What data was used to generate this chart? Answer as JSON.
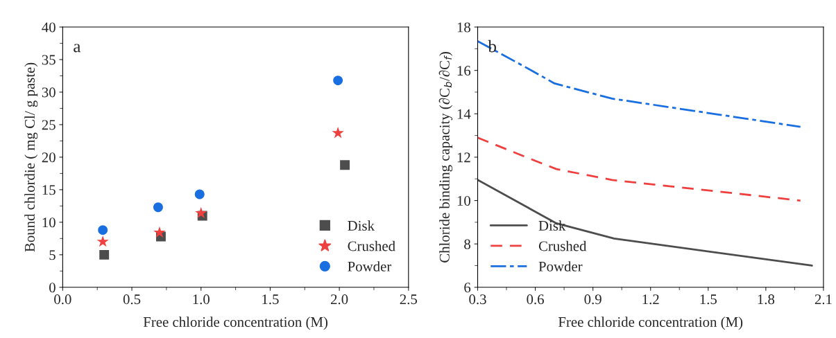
{
  "chart_data": [
    {
      "type": "scatter",
      "xlabel": "Free chloride concentration (M)",
      "ylabel": "Bound chlordie ( mg Cl/ g paste)",
      "annotations": [
        "a"
      ],
      "xlim": [
        0.0,
        2.5
      ],
      "xticks": [
        {
          "value": 0.0,
          "label": "0.0"
        },
        0.5,
        {
          "value": 1.0,
          "label": "1.0"
        },
        1.5,
        {
          "value": 2.0,
          "label": "2.0"
        },
        2.5
      ],
      "ylim": [
        0,
        40
      ],
      "yticks": [
        0,
        5,
        10,
        15,
        20,
        25,
        30,
        35,
        40
      ],
      "grid": false,
      "legend": "bottom right",
      "series": [
        {
          "name": "Disk",
          "color": "#4d4d4d",
          "marker": "square",
          "x": [
            0.3,
            0.71,
            1.01,
            2.04
          ],
          "values": [
            5.0,
            7.8,
            11.0,
            18.8
          ]
        },
        {
          "name": "Crushed",
          "color": "#ef4040",
          "marker": "star",
          "x": [
            0.29,
            0.7,
            1.0,
            1.99
          ],
          "values": [
            7.0,
            8.4,
            11.4,
            23.7
          ]
        },
        {
          "name": "Powder",
          "color": "#1a6fe0",
          "marker": "circle",
          "x": [
            0.29,
            0.69,
            0.99,
            1.99
          ],
          "values": [
            8.8,
            12.3,
            14.3,
            31.8
          ]
        }
      ]
    },
    {
      "type": "line",
      "xlabel": "Free chloride concentration (M)",
      "ylabel": "Chloride binding capacity (∂C$_{b}$/∂C$_{f}$)",
      "annotations": [
        "b"
      ],
      "xlim": [
        0.3,
        2.1
      ],
      "xticks": [
        0.3,
        0.6,
        0.9,
        1.2,
        1.5,
        1.8,
        2.1
      ],
      "ylim": [
        6,
        18
      ],
      "yticks": [
        6,
        8,
        10,
        12,
        14,
        16,
        18
      ],
      "grid": false,
      "legend": "bottom left",
      "series": [
        {
          "name": "Disk",
          "color": "#4d4d4d",
          "line_style": "solid",
          "x": [
            0.3,
            0.71,
            1.01,
            2.04
          ],
          "values": [
            10.95,
            8.95,
            8.25,
            7.0
          ]
        },
        {
          "name": "Crushed",
          "color": "#ef4040",
          "line_style": "dashed",
          "x": [
            0.3,
            0.58,
            0.71,
            1.0,
            1.98
          ],
          "values": [
            12.9,
            11.9,
            11.45,
            10.95,
            10.0
          ]
        },
        {
          "name": "Powder",
          "color": "#1a6fe0",
          "line_style": "dashdot",
          "x": [
            0.3,
            0.58,
            0.7,
            1.0,
            1.98
          ],
          "values": [
            17.35,
            16.0,
            15.4,
            14.7,
            13.4
          ]
        }
      ]
    }
  ]
}
